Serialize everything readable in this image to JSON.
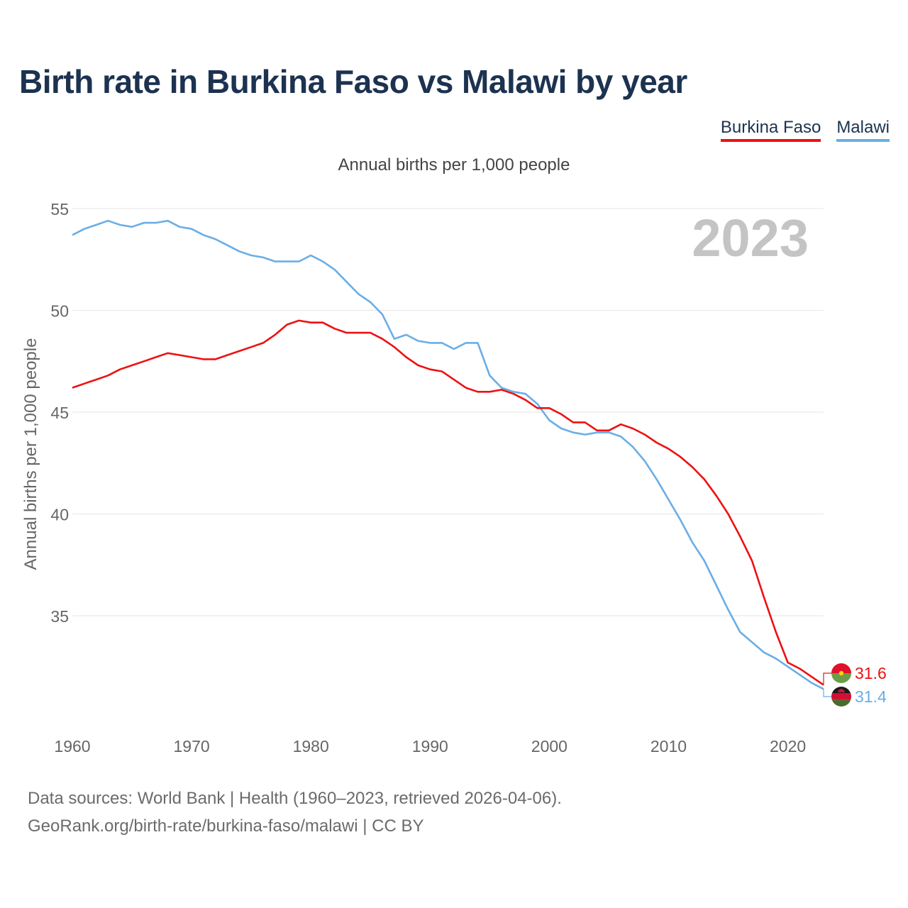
{
  "chart_data": {
    "type": "line",
    "title": "Birth rate in Burkina Faso vs Malawi by year",
    "subtitle": "Annual births per 1,000 people",
    "ylabel": "Annual births per 1,000 people",
    "xlabel": "",
    "year_watermark": "2023",
    "xlim": [
      1960,
      2023
    ],
    "ylim": [
      30.5,
      55.3
    ],
    "x_ticks": [
      1960,
      1970,
      1980,
      1990,
      2000,
      2010,
      2020
    ],
    "y_ticks": [
      35,
      40,
      45,
      50,
      55
    ],
    "grid": "horizontal",
    "legend_position": "top-right",
    "x": [
      1960,
      1961,
      1962,
      1963,
      1964,
      1965,
      1966,
      1967,
      1968,
      1969,
      1970,
      1971,
      1972,
      1973,
      1974,
      1975,
      1976,
      1977,
      1978,
      1979,
      1980,
      1981,
      1982,
      1983,
      1984,
      1985,
      1986,
      1987,
      1988,
      1989,
      1990,
      1991,
      1992,
      1993,
      1994,
      1995,
      1996,
      1997,
      1998,
      1999,
      2000,
      2001,
      2002,
      2003,
      2004,
      2005,
      2006,
      2007,
      2008,
      2009,
      2010,
      2011,
      2012,
      2013,
      2014,
      2015,
      2016,
      2017,
      2018,
      2019,
      2020,
      2021,
      2022,
      2023
    ],
    "series": [
      {
        "name": "Burkina Faso",
        "color": "#ee1111",
        "end_label": "31.6",
        "values": [
          46.2,
          46.4,
          46.6,
          46.8,
          47.1,
          47.3,
          47.5,
          47.7,
          47.9,
          47.8,
          47.7,
          47.6,
          47.6,
          47.8,
          48.0,
          48.2,
          48.4,
          48.8,
          49.3,
          49.5,
          49.4,
          49.4,
          49.1,
          48.9,
          48.9,
          48.9,
          48.6,
          48.2,
          47.7,
          47.3,
          47.1,
          47.0,
          46.6,
          46.2,
          46.0,
          46.0,
          46.1,
          45.9,
          45.6,
          45.2,
          45.2,
          44.9,
          44.5,
          44.5,
          44.1,
          44.1,
          44.4,
          44.2,
          43.9,
          43.5,
          43.2,
          42.8,
          42.3,
          41.7,
          40.9,
          40.0,
          38.9,
          37.7,
          35.9,
          34.2,
          32.7,
          32.4,
          32.0,
          31.6
        ]
      },
      {
        "name": "Malawi",
        "color": "#6aaee6",
        "end_label": "31.4",
        "values": [
          53.7,
          54.0,
          54.2,
          54.4,
          54.2,
          54.1,
          54.3,
          54.3,
          54.4,
          54.1,
          54.0,
          53.7,
          53.5,
          53.2,
          52.9,
          52.7,
          52.6,
          52.4,
          52.4,
          52.4,
          52.7,
          52.4,
          52.0,
          51.4,
          50.8,
          50.4,
          49.8,
          48.6,
          48.8,
          48.5,
          48.4,
          48.4,
          48.1,
          48.4,
          48.4,
          46.8,
          46.2,
          46.0,
          45.9,
          45.4,
          44.6,
          44.2,
          44.0,
          43.9,
          44.0,
          44.0,
          43.8,
          43.3,
          42.6,
          41.7,
          40.7,
          39.7,
          38.6,
          37.7,
          36.5,
          35.3,
          34.2,
          33.7,
          33.2,
          32.9,
          32.5,
          32.1,
          31.7,
          31.4
        ]
      }
    ]
  },
  "footer": {
    "line1": "Data sources: World Bank | Health (1960–2023, retrieved 2026-04-06).",
    "line2": "GeoRank.org/birth-rate/burkina-faso/malawi | CC BY"
  }
}
